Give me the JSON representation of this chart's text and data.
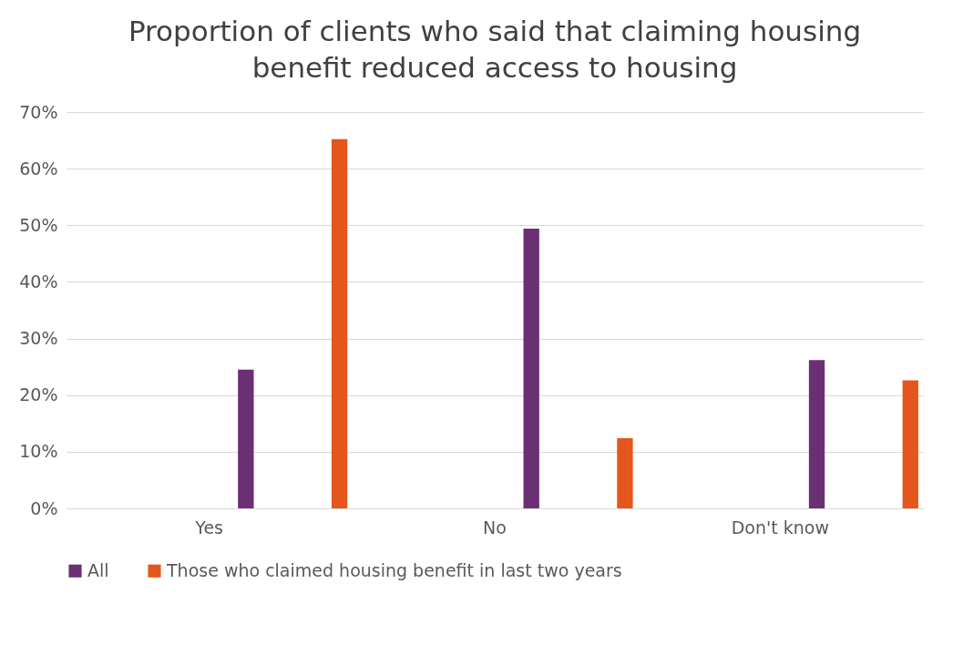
{
  "chart_data": {
    "type": "bar",
    "title": "Proportion of clients who said that claiming housing benefit reduced access to housing",
    "categories": [
      "Yes",
      "No",
      "Don't know"
    ],
    "series": [
      {
        "name": "All",
        "color": "#6b2f74",
        "values": [
          24.5,
          49.4,
          26.2
        ]
      },
      {
        "name": "Those who claimed housing benefit in last two years",
        "color": "#e4561c",
        "values": [
          65.2,
          12.4,
          22.6
        ]
      }
    ],
    "ylim": [
      0,
      70
    ],
    "yticks": [
      {
        "value": 0,
        "label": "0%"
      },
      {
        "value": 10,
        "label": "10%"
      },
      {
        "value": 20,
        "label": "20%"
      },
      {
        "value": 30,
        "label": "30%"
      },
      {
        "value": 40,
        "label": "40%"
      },
      {
        "value": 50,
        "label": "50%"
      },
      {
        "value": 60,
        "label": "60%"
      },
      {
        "value": 70,
        "label": "70%"
      }
    ],
    "grid": "y",
    "legend": "bottom"
  }
}
